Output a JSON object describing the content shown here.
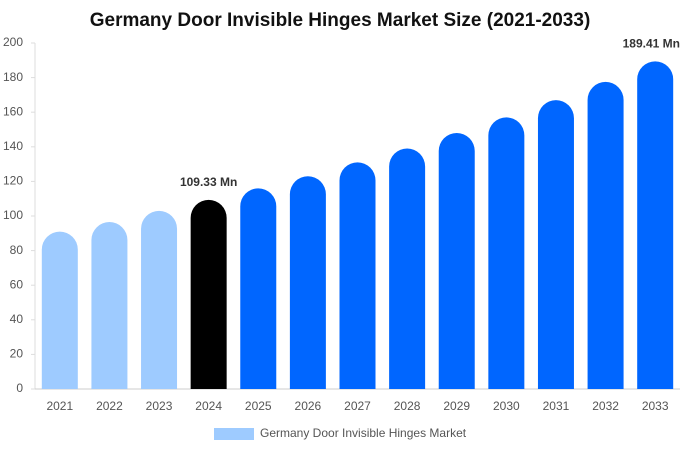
{
  "chart_data": {
    "type": "bar",
    "title": "Germany Door Invisible Hinges Market Size (2021-2033)",
    "categories": [
      "2021",
      "2022",
      "2023",
      "2024",
      "2025",
      "2026",
      "2027",
      "2028",
      "2029",
      "2030",
      "2031",
      "2032",
      "2033"
    ],
    "series": [
      {
        "name": "Germany Door Invisible Hinges Market",
        "color": "#9ecbff",
        "bar_colors": [
          "#9ecbff",
          "#9ecbff",
          "#9ecbff",
          "#000000",
          "#0066ff",
          "#0066ff",
          "#0066ff",
          "#0066ff",
          "#0066ff",
          "#0066ff",
          "#0066ff",
          "#0066ff",
          "#0066ff"
        ],
        "values": [
          91,
          96.5,
          103,
          109.33,
          116,
          123,
          131,
          139,
          148,
          157,
          167,
          177.5,
          189.41
        ],
        "value_labels": [
          null,
          null,
          null,
          "109.33 Mn",
          null,
          null,
          null,
          null,
          null,
          null,
          null,
          null,
          "189.41 Mn"
        ]
      }
    ],
    "ylim": [
      0,
      200
    ],
    "yticks": [
      0,
      20,
      40,
      60,
      80,
      100,
      120,
      140,
      160,
      180,
      200
    ],
    "grid": false
  }
}
